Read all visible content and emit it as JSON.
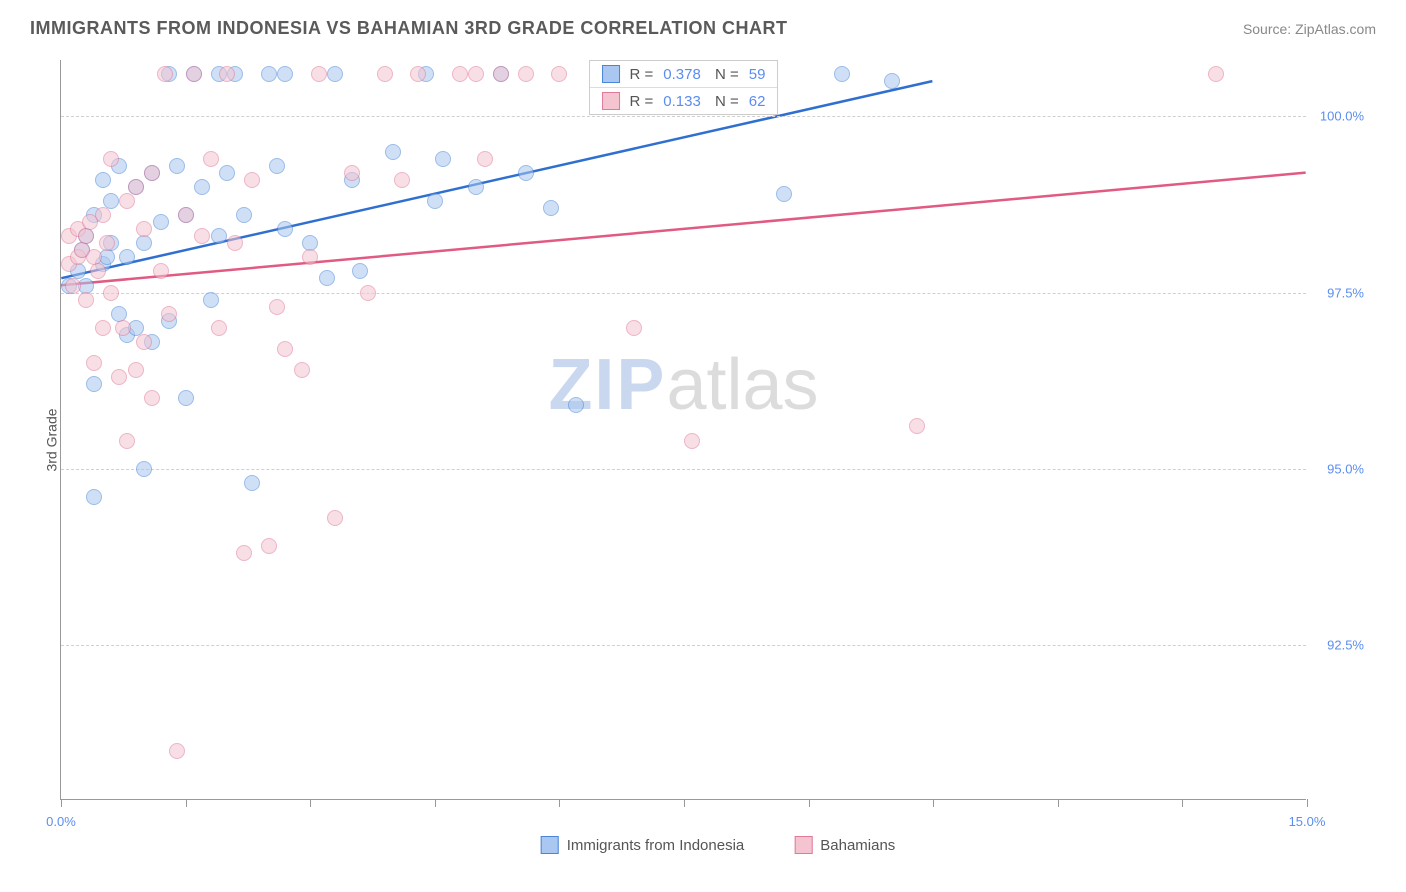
{
  "header": {
    "title": "IMMIGRANTS FROM INDONESIA VS BAHAMIAN 3RD GRADE CORRELATION CHART",
    "source": "Source: ZipAtlas.com"
  },
  "chart": {
    "type": "scatter",
    "ylabel": "3rd Grade",
    "xlim": [
      0.0,
      15.0
    ],
    "ylim": [
      90.3,
      100.8
    ],
    "x_ticks": [
      0.0,
      15.0
    ],
    "x_tick_labels": [
      "0.0%",
      "15.0%"
    ],
    "x_minor_ticks": [
      0,
      1.5,
      3.0,
      4.5,
      6.0,
      7.5,
      9.0,
      10.5,
      12.0,
      13.5,
      15.0
    ],
    "y_ticks": [
      92.5,
      95.0,
      97.5,
      100.0
    ],
    "y_tick_labels": [
      "92.5%",
      "95.0%",
      "97.5%",
      "100.0%"
    ],
    "background_color": "#ffffff",
    "grid_color": "#d0d0d0",
    "axis_color": "#999999",
    "label_color": "#5b8def",
    "marker_size": 16,
    "marker_opacity": 0.55,
    "series": [
      {
        "name": "Immigrants from Indonesia",
        "fill": "#a9c7f0",
        "stroke": "#4a86d8",
        "line_color": "#2f6fd0",
        "line_width": 2.5,
        "R": "0.378",
        "N": "59",
        "trend": {
          "x1": 0.0,
          "y1": 97.7,
          "x2": 10.5,
          "y2": 100.5
        },
        "points": [
          [
            0.1,
            97.6
          ],
          [
            0.2,
            97.8
          ],
          [
            0.25,
            98.1
          ],
          [
            0.3,
            98.3
          ],
          [
            0.3,
            97.6
          ],
          [
            0.4,
            98.6
          ],
          [
            0.4,
            96.2
          ],
          [
            0.5,
            99.1
          ],
          [
            0.5,
            97.9
          ],
          [
            0.55,
            98.0
          ],
          [
            0.6,
            98.8
          ],
          [
            0.6,
            98.2
          ],
          [
            0.7,
            99.3
          ],
          [
            0.7,
            97.2
          ],
          [
            0.8,
            98.0
          ],
          [
            0.8,
            96.9
          ],
          [
            0.9,
            99.0
          ],
          [
            0.9,
            97.0
          ],
          [
            1.0,
            98.2
          ],
          [
            1.0,
            95.0
          ],
          [
            1.1,
            99.2
          ],
          [
            1.1,
            96.8
          ],
          [
            1.2,
            98.5
          ],
          [
            1.3,
            100.6
          ],
          [
            1.3,
            97.1
          ],
          [
            1.4,
            99.3
          ],
          [
            1.5,
            98.6
          ],
          [
            1.5,
            96.0
          ],
          [
            1.6,
            100.6
          ],
          [
            1.7,
            99.0
          ],
          [
            1.8,
            97.4
          ],
          [
            1.9,
            100.6
          ],
          [
            1.9,
            98.3
          ],
          [
            2.0,
            99.2
          ],
          [
            2.1,
            100.6
          ],
          [
            2.2,
            98.6
          ],
          [
            2.3,
            94.8
          ],
          [
            2.5,
            100.6
          ],
          [
            2.6,
            99.3
          ],
          [
            2.7,
            98.4
          ],
          [
            2.7,
            100.6
          ],
          [
            3.0,
            98.2
          ],
          [
            3.2,
            97.7
          ],
          [
            3.3,
            100.6
          ],
          [
            3.5,
            99.1
          ],
          [
            3.6,
            97.8
          ],
          [
            4.0,
            99.5
          ],
          [
            4.4,
            100.6
          ],
          [
            4.5,
            98.8
          ],
          [
            4.6,
            99.4
          ],
          [
            5.0,
            99.0
          ],
          [
            5.3,
            100.6
          ],
          [
            5.6,
            99.2
          ],
          [
            5.9,
            98.7
          ],
          [
            6.2,
            95.9
          ],
          [
            8.7,
            98.9
          ],
          [
            9.4,
            100.6
          ],
          [
            10.0,
            100.5
          ],
          [
            0.4,
            94.6
          ]
        ]
      },
      {
        "name": "Bahamians",
        "fill": "#f4c4d0",
        "stroke": "#e07a9a",
        "line_color": "#e05a82",
        "line_width": 2.5,
        "R": "0.133",
        "N": "62",
        "trend": {
          "x1": 0.0,
          "y1": 97.6,
          "x2": 15.0,
          "y2": 99.2
        },
        "points": [
          [
            0.1,
            97.9
          ],
          [
            0.1,
            98.3
          ],
          [
            0.15,
            97.6
          ],
          [
            0.2,
            98.0
          ],
          [
            0.2,
            98.4
          ],
          [
            0.25,
            98.1
          ],
          [
            0.3,
            98.3
          ],
          [
            0.3,
            97.4
          ],
          [
            0.35,
            98.5
          ],
          [
            0.4,
            98.0
          ],
          [
            0.4,
            96.5
          ],
          [
            0.45,
            97.8
          ],
          [
            0.5,
            98.6
          ],
          [
            0.5,
            97.0
          ],
          [
            0.55,
            98.2
          ],
          [
            0.6,
            99.4
          ],
          [
            0.6,
            97.5
          ],
          [
            0.7,
            96.3
          ],
          [
            0.75,
            97.0
          ],
          [
            0.8,
            98.8
          ],
          [
            0.8,
            95.4
          ],
          [
            0.9,
            99.0
          ],
          [
            0.9,
            96.4
          ],
          [
            1.0,
            96.8
          ],
          [
            1.0,
            98.4
          ],
          [
            1.1,
            99.2
          ],
          [
            1.1,
            96.0
          ],
          [
            1.2,
            97.8
          ],
          [
            1.25,
            100.6
          ],
          [
            1.3,
            97.2
          ],
          [
            1.4,
            91.0
          ],
          [
            1.5,
            98.6
          ],
          [
            1.6,
            100.6
          ],
          [
            1.7,
            98.3
          ],
          [
            1.8,
            99.4
          ],
          [
            1.9,
            97.0
          ],
          [
            2.0,
            100.6
          ],
          [
            2.1,
            98.2
          ],
          [
            2.2,
            93.8
          ],
          [
            2.3,
            99.1
          ],
          [
            2.5,
            93.9
          ],
          [
            2.6,
            97.3
          ],
          [
            2.7,
            96.7
          ],
          [
            2.9,
            96.4
          ],
          [
            3.0,
            98.0
          ],
          [
            3.1,
            100.6
          ],
          [
            3.3,
            94.3
          ],
          [
            3.5,
            99.2
          ],
          [
            3.7,
            97.5
          ],
          [
            3.9,
            100.6
          ],
          [
            4.1,
            99.1
          ],
          [
            4.3,
            100.6
          ],
          [
            4.8,
            100.6
          ],
          [
            5.0,
            100.6
          ],
          [
            5.1,
            99.4
          ],
          [
            5.3,
            100.6
          ],
          [
            5.6,
            100.6
          ],
          [
            6.0,
            100.6
          ],
          [
            6.9,
            97.0
          ],
          [
            7.6,
            95.4
          ],
          [
            10.3,
            95.6
          ],
          [
            13.9,
            100.6
          ]
        ]
      }
    ],
    "legend": {
      "items": [
        {
          "label": "Immigrants from Indonesia",
          "swatch": "blue"
        },
        {
          "label": "Bahamians",
          "swatch": "pink"
        }
      ]
    },
    "watermark": {
      "bold": "ZIP",
      "light": "atlas"
    }
  }
}
